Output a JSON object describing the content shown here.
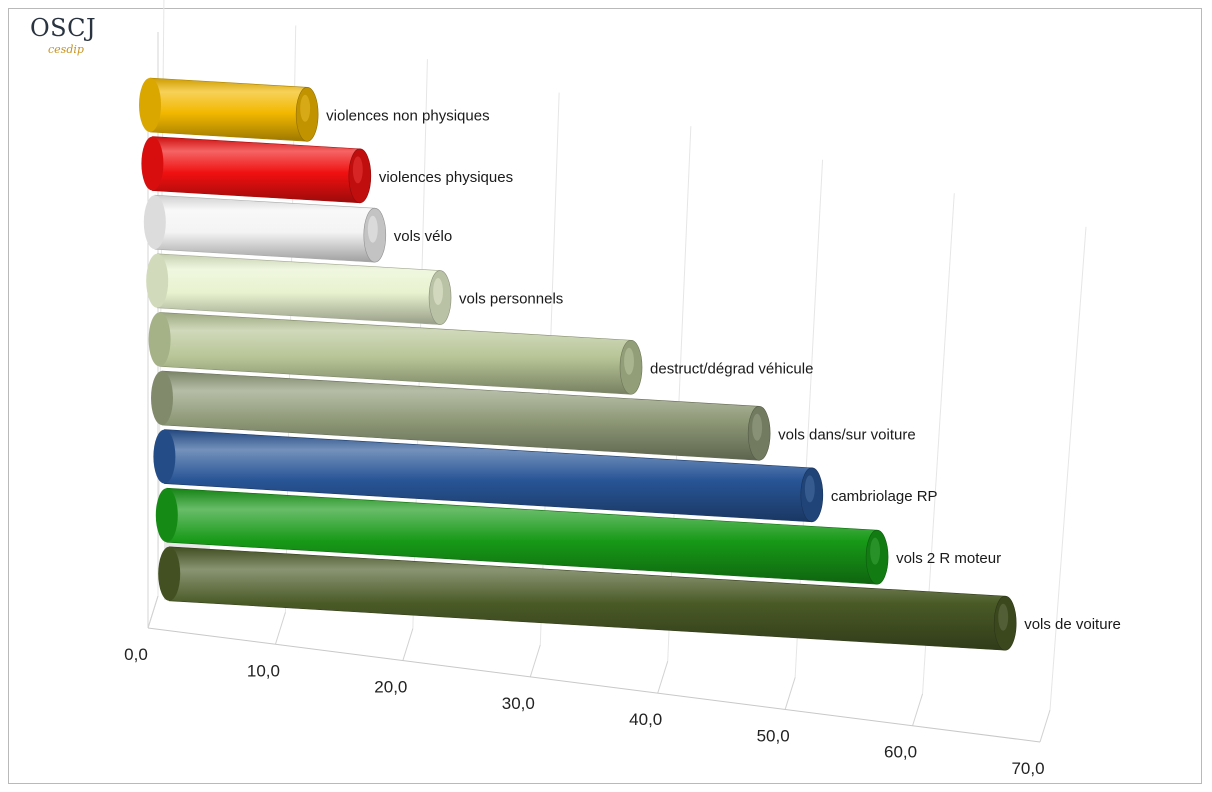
{
  "logo": {
    "main": "OSCJ",
    "sub": "cesdip"
  },
  "chart_data": {
    "type": "bar",
    "orientation": "horizontal",
    "style": "3d-cylinder",
    "xlim": [
      0,
      70
    ],
    "ticks": [
      "0,0",
      "10,0",
      "20,0",
      "30,0",
      "40,0",
      "50,0",
      "60,0",
      "70,0"
    ],
    "grid": true,
    "legend": "none",
    "series": [
      {
        "label": "violences non physiques",
        "value": 12.5,
        "color": "#f2b800"
      },
      {
        "label": "violences physiques",
        "value": 16.5,
        "color": "#f01010"
      },
      {
        "label": "vols vélo",
        "value": 17.5,
        "color": "#f4f4f4"
      },
      {
        "label": "vols personnels",
        "value": 22.5,
        "color": "#e8f2cf"
      },
      {
        "label": "destruct/dégrad véhicule",
        "value": 37.5,
        "color": "#b7c596"
      },
      {
        "label": "vols dans/sur voiture",
        "value": 47.5,
        "color": "#8f9a78"
      },
      {
        "label": "cambriolage RP",
        "value": 51.5,
        "color": "#285596"
      },
      {
        "label": "vols 2 R moteur",
        "value": 56.5,
        "color": "#179a17"
      },
      {
        "label": "vols de voiture",
        "value": 66.5,
        "color": "#4a5a26"
      }
    ]
  }
}
